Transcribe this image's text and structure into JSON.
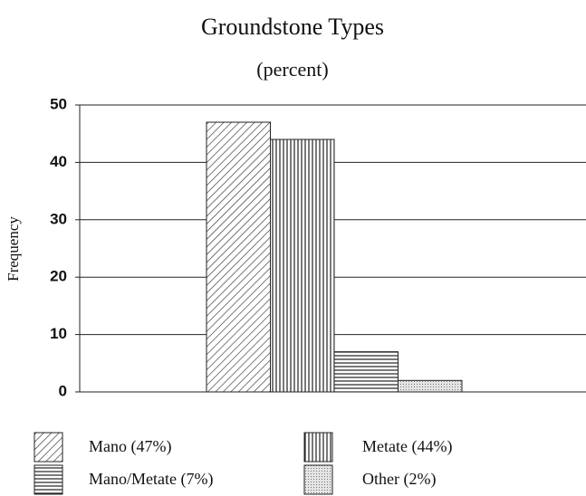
{
  "chart_data": {
    "type": "bar",
    "title": "Groundstone Types",
    "subtitle": "(percent)",
    "y_label": "Frequency",
    "series": [
      {
        "name": "Mano (47%)",
        "pattern": "diagonal",
        "values": [
          47
        ]
      },
      {
        "name": "Metate (44%)",
        "pattern": "vertical",
        "values": [
          44
        ]
      },
      {
        "name": "Mano/Metate (7%)",
        "pattern": "horizontal",
        "values": [
          7
        ]
      },
      {
        "name": "Other (2%)",
        "pattern": "dots",
        "values": [
          2
        ]
      }
    ],
    "ylim": [
      0,
      50
    ],
    "yticks": [
      0,
      10,
      20,
      30,
      40,
      50
    ],
    "grid": true
  }
}
